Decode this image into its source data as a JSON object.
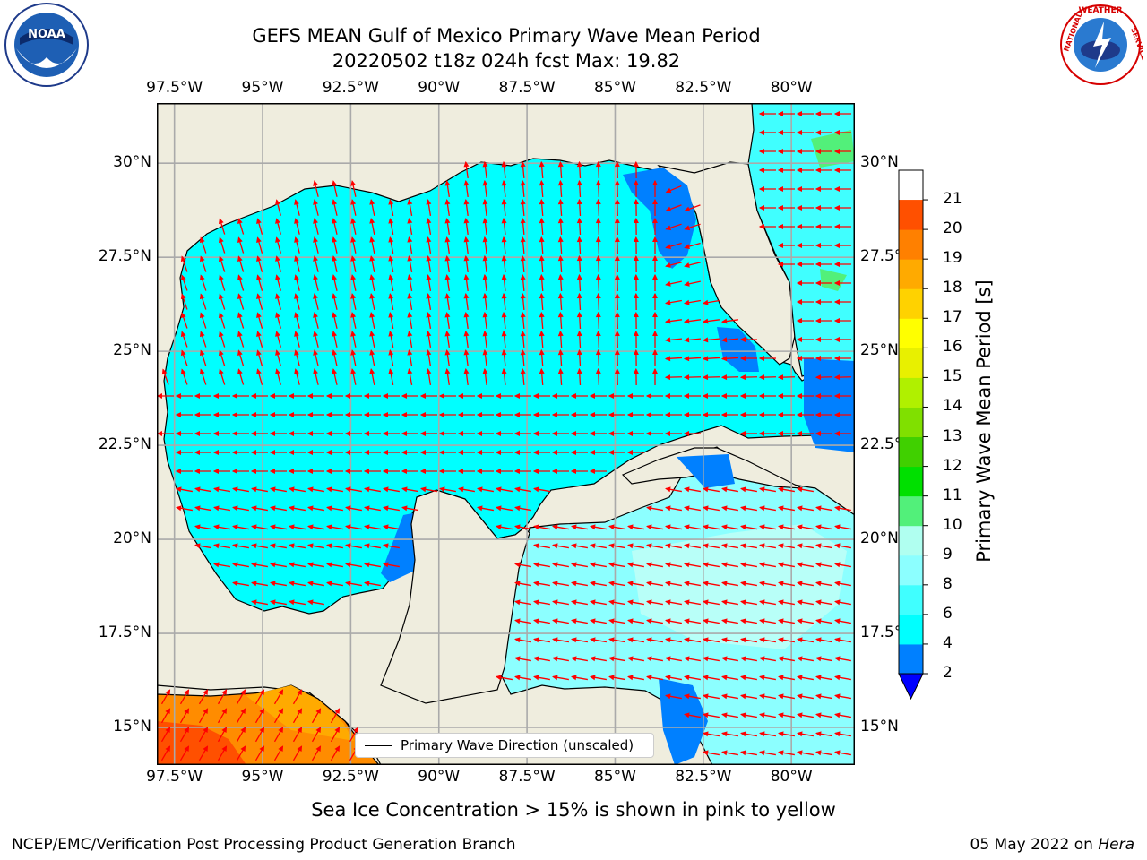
{
  "title": {
    "line1": "GEFS MEAN Gulf of Mexico Primary Wave Mean Period",
    "line2": "20220502 t18z 024h fcst   Max: 19.82"
  },
  "logos": {
    "left": {
      "name": "NOAA",
      "ring_text": "NATIONAL OCEANIC AND ATMOSPHERIC ADMINISTRATION · U.S. DEPARTMENT OF COMMERCE"
    },
    "right": {
      "name": "NATIONAL WEATHER SERVICE"
    }
  },
  "map": {
    "lon_labels": [
      "97.5°W",
      "95°W",
      "92.5°W",
      "90°W",
      "87.5°W",
      "85°W",
      "82.5°W",
      "80°W"
    ],
    "lat_labels": [
      "30°N",
      "27.5°N",
      "25°N",
      "22.5°N",
      "20°N",
      "17.5°N",
      "15°N"
    ],
    "lon_range": [
      -98,
      -78.2
    ],
    "lat_range": [
      14,
      31.6
    ],
    "legend_label": "Primary Wave Direction (unscaled)",
    "colors": {
      "land": "#efedde",
      "ocean_cyan": "#00ffff",
      "ocean_light": "#8cffff",
      "ocean_pale": "#b8fff8",
      "ocean_blue": "#0080ff",
      "arrow": "#ff0000",
      "warm": "#ff8c00"
    }
  },
  "colorbar": {
    "label": "Primary Wave Mean Period [s]",
    "ticks": [
      "2",
      "4",
      "6",
      "8",
      "9",
      "10",
      "11",
      "12",
      "13",
      "14",
      "15",
      "16",
      "17",
      "18",
      "19",
      "20",
      "21"
    ],
    "colors": [
      "#0080ff",
      "#00ffff",
      "#40ffff",
      "#8cffff",
      "#b0fff0",
      "#52f07a",
      "#00e000",
      "#40d000",
      "#80e000",
      "#b0f000",
      "#e8f000",
      "#ffff00",
      "#ffd200",
      "#ffaa00",
      "#ff8000",
      "#ff5000",
      "#ff2000",
      "#ff0000"
    ],
    "extend_color": "#0000ff"
  },
  "footer": {
    "note": "Sea Ice Concentration > 15% is shown in pink to yellow",
    "left": "NCEP/EMC/Verification Post Processing Product Generation Branch",
    "date": "05 May 2022 on",
    "machine": "Hera"
  }
}
